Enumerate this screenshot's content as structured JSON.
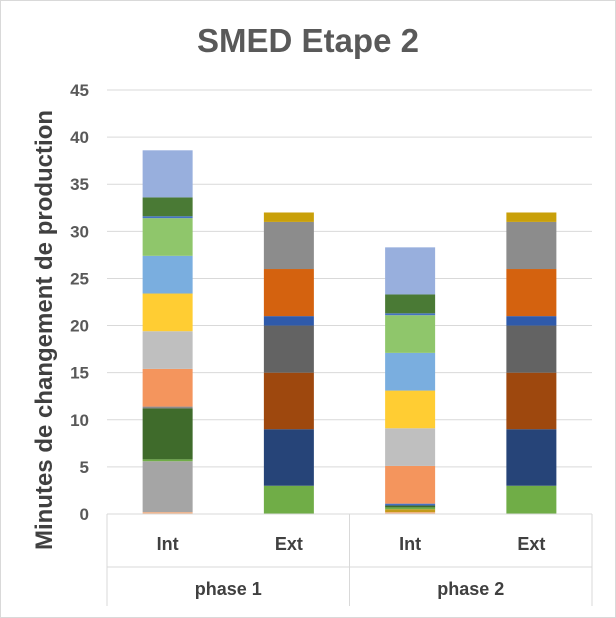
{
  "chart_data": {
    "type": "bar",
    "stacked": true,
    "title": "SMED Etape 2",
    "ylabel": "Minutes  de changement de production",
    "ylim": [
      0,
      45
    ],
    "yticks": [
      0,
      5,
      10,
      15,
      20,
      25,
      30,
      35,
      40,
      45
    ],
    "grid": true,
    "legend": "none",
    "categories": [
      "Int",
      "Ext",
      "Int",
      "Ext"
    ],
    "groups": [
      {
        "label": "phase 1",
        "categories": [
          "Int",
          "Ext"
        ]
      },
      {
        "label": "phase 2",
        "categories": [
          "Int",
          "Ext"
        ]
      }
    ],
    "stacks": [
      [
        {
          "value": 0.2,
          "color": "#f4b183"
        },
        {
          "value": 5.4,
          "color": "#a5a5a5"
        },
        {
          "value": 0.2,
          "color": "#70ad47"
        },
        {
          "value": 5.4,
          "color": "#3f6b2b"
        },
        {
          "value": 0.2,
          "color": "#8a8a8a"
        },
        {
          "value": 4.0,
          "color": "#f4955d"
        },
        {
          "value": 4.0,
          "color": "#bfbfbf"
        },
        {
          "value": 4.0,
          "color": "#ffcd33"
        },
        {
          "value": 4.0,
          "color": "#7aaedf"
        },
        {
          "value": 4.0,
          "color": "#8fc66b"
        },
        {
          "value": 0.2,
          "color": "#4472c4"
        },
        {
          "value": 2.0,
          "color": "#4a7a35"
        },
        {
          "value": 5.0,
          "color": "#98afdd"
        }
      ],
      [
        {
          "value": 3.0,
          "color": "#70ad47"
        },
        {
          "value": 6.0,
          "color": "#264478"
        },
        {
          "value": 6.0,
          "color": "#9e480e"
        },
        {
          "value": 5.0,
          "color": "#636363"
        },
        {
          "value": 1.0,
          "color": "#2f5aaa"
        },
        {
          "value": 5.0,
          "color": "#d4620f"
        },
        {
          "value": 5.0,
          "color": "#8c8c8c"
        },
        {
          "value": 1.0,
          "color": "#c9a00a"
        }
      ],
      [
        {
          "value": 0.2,
          "color": "#f4b183"
        },
        {
          "value": 0.3,
          "color": "#c49a1a"
        },
        {
          "value": 0.2,
          "color": "#70ad47"
        },
        {
          "value": 0.2,
          "color": "#3f6b2b"
        },
        {
          "value": 0.2,
          "color": "#4472c4"
        },
        {
          "value": 4.0,
          "color": "#f4955d"
        },
        {
          "value": 4.0,
          "color": "#bfbfbf"
        },
        {
          "value": 4.0,
          "color": "#ffcd33"
        },
        {
          "value": 4.0,
          "color": "#7aaedf"
        },
        {
          "value": 4.0,
          "color": "#8fc66b"
        },
        {
          "value": 0.2,
          "color": "#4472c4"
        },
        {
          "value": 2.0,
          "color": "#4a7a35"
        },
        {
          "value": 5.0,
          "color": "#98afdd"
        }
      ],
      [
        {
          "value": 3.0,
          "color": "#70ad47"
        },
        {
          "value": 6.0,
          "color": "#264478"
        },
        {
          "value": 6.0,
          "color": "#9e480e"
        },
        {
          "value": 5.0,
          "color": "#636363"
        },
        {
          "value": 1.0,
          "color": "#2f5aaa"
        },
        {
          "value": 5.0,
          "color": "#d4620f"
        },
        {
          "value": 5.0,
          "color": "#8c8c8c"
        },
        {
          "value": 1.0,
          "color": "#c9a00a"
        }
      ]
    ],
    "colors": {
      "grid": "#d9d9d9",
      "axis": "#d9d9d9",
      "text": "#595959"
    }
  }
}
